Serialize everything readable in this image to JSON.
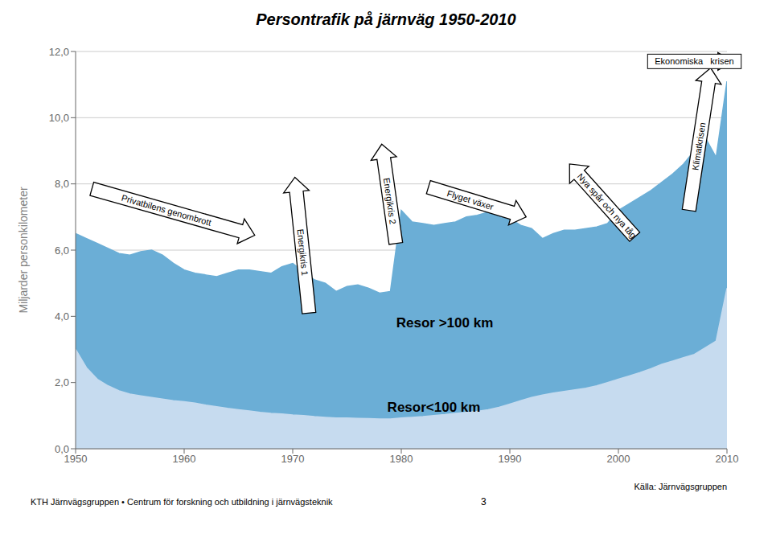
{
  "chart_data": {
    "type": "area",
    "title": "Persontrafik på järnväg 1950-2010",
    "ylabel": "Miljarder personkilometer",
    "x": [
      1950,
      1951,
      1952,
      1953,
      1954,
      1955,
      1956,
      1957,
      1958,
      1959,
      1960,
      1961,
      1962,
      1963,
      1964,
      1965,
      1966,
      1967,
      1968,
      1969,
      1970,
      1971,
      1972,
      1973,
      1974,
      1975,
      1976,
      1977,
      1978,
      1979,
      1980,
      1981,
      1982,
      1983,
      1984,
      1985,
      1986,
      1987,
      1988,
      1989,
      1990,
      1991,
      1992,
      1993,
      1994,
      1995,
      1996,
      1997,
      1998,
      1999,
      2000,
      2001,
      2002,
      2003,
      2004,
      2005,
      2006,
      2007,
      2008,
      2009,
      2010
    ],
    "series": [
      {
        "color": "#c6dbef",
        "values": [
          3.0,
          2.45,
          2.1,
          1.9,
          1.75,
          1.65,
          1.6,
          1.55,
          1.5,
          1.45,
          1.42,
          1.38,
          1.32,
          1.27,
          1.22,
          1.18,
          1.14,
          1.1,
          1.07,
          1.05,
          1.02,
          1.0,
          0.97,
          0.95,
          0.93,
          0.93,
          0.92,
          0.91,
          0.9,
          0.9,
          0.93,
          0.95,
          0.97,
          1.0,
          1.03,
          1.07,
          1.1,
          1.13,
          1.18,
          1.25,
          1.35,
          1.45,
          1.55,
          1.62,
          1.68,
          1.73,
          1.78,
          1.83,
          1.9,
          2.0,
          2.1,
          2.2,
          2.3,
          2.42,
          2.55,
          2.65,
          2.75,
          2.85,
          3.05,
          3.25,
          4.85
        ]
      },
      {
        "color": "#6baed6",
        "values": [
          6.5,
          6.35,
          6.2,
          6.05,
          5.9,
          5.85,
          5.95,
          6.0,
          5.85,
          5.6,
          5.4,
          5.3,
          5.25,
          5.2,
          5.3,
          5.4,
          5.4,
          5.35,
          5.3,
          5.5,
          5.6,
          5.35,
          5.1,
          5.0,
          4.75,
          4.9,
          4.95,
          4.85,
          4.7,
          4.75,
          7.2,
          6.85,
          6.8,
          6.75,
          6.8,
          6.85,
          7.0,
          7.05,
          7.15,
          7.1,
          6.95,
          6.75,
          6.65,
          6.35,
          6.5,
          6.6,
          6.6,
          6.65,
          6.7,
          6.8,
          7.2,
          7.4,
          7.6,
          7.8,
          8.05,
          8.3,
          8.6,
          9.0,
          9.4,
          8.8,
          11.1
        ]
      }
    ],
    "xlim": [
      1950,
      2010
    ],
    "ylim": [
      0,
      12
    ],
    "xticks": [
      1950,
      1960,
      1970,
      1980,
      1990,
      2000,
      2010
    ],
    "yticks": [
      {
        "value": 0,
        "label": "0,0"
      },
      {
        "value": 2,
        "label": "2,0"
      },
      {
        "value": 4,
        "label": "4,0"
      },
      {
        "value": 6,
        "label": "6,0"
      },
      {
        "value": 8,
        "label": "8,0"
      },
      {
        "value": 10,
        "label": "10,0"
      },
      {
        "value": 12,
        "label": "12,0"
      }
    ],
    "grid": "y",
    "annotations": [
      {
        "text": "Resor >100 km",
        "x": 1984,
        "y": 3.8
      },
      {
        "text": "Resor<100 km",
        "x": 1983,
        "y": 1.25
      },
      {
        "text": "Privatbilens genombrott",
        "arrow_from": [
          1951.5,
          7.85
        ],
        "arrow_to": [
          1966.5,
          6.45
        ]
      },
      {
        "text": "Energikris 1",
        "arrow_from": [
          1971.5,
          4.1
        ],
        "arrow_to": [
          1970.2,
          8.2
        ]
      },
      {
        "text": "Energikris 2",
        "arrow_from": [
          1979.5,
          6.2
        ],
        "arrow_to": [
          1978.2,
          9.2
        ]
      },
      {
        "text": "Flyget växer",
        "arrow_from": [
          1982.5,
          7.9
        ],
        "arrow_to": [
          1991.5,
          7.0
        ]
      },
      {
        "text": "Nya spår och nya tåg",
        "arrow_from": [
          2001.5,
          6.4
        ],
        "arrow_to": [
          1995.5,
          8.6
        ]
      },
      {
        "text": "Klimatkrisen",
        "arrow_from": [
          2006.5,
          7.2
        ],
        "arrow_to": [
          2008.5,
          11.5
        ]
      },
      {
        "text": "Ekonomiska   krisen",
        "x": 2007.0,
        "y": 11.7,
        "arrow_from": [
          2004.5,
          11.7
        ],
        "arrow_to": [
          2010.5,
          11.7
        ]
      }
    ],
    "source": "Källa: Järnvägsgruppen",
    "footer": "KTH Järnvägsgruppen • Centrum för forskning och utbildning i järnvägsteknik",
    "page": "3"
  }
}
